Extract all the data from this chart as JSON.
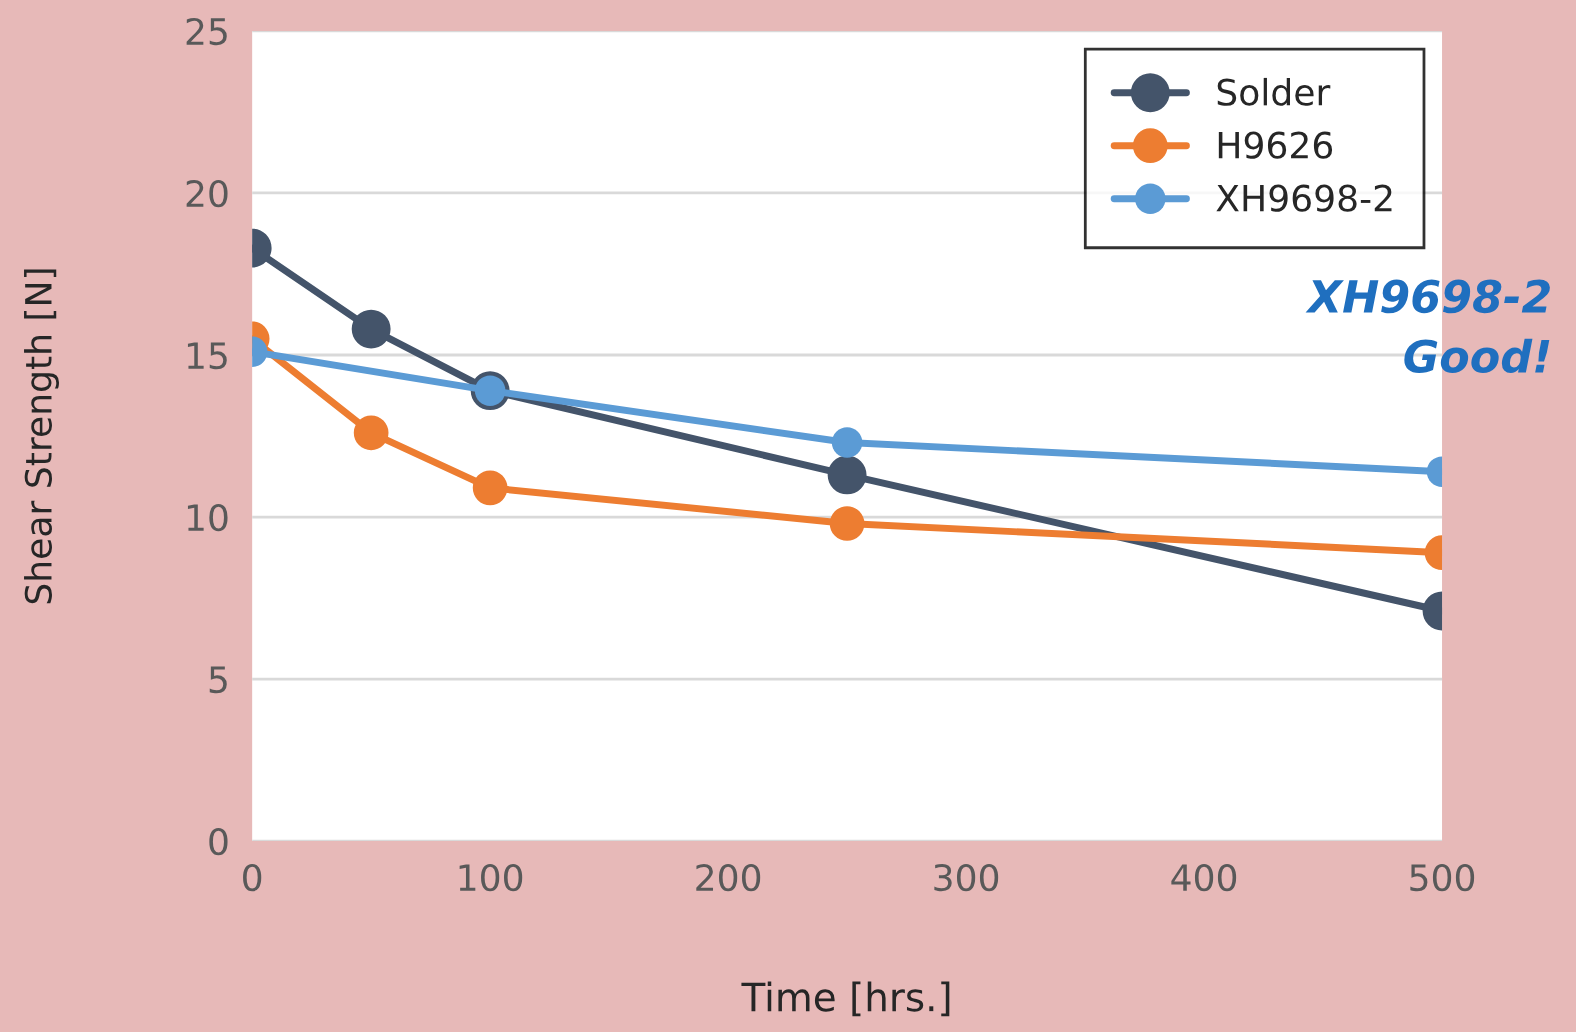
{
  "chart_data": {
    "type": "line",
    "xlabel": "Time [hrs.]",
    "ylabel": "Shear Strength [N]",
    "xlim": [
      0,
      500
    ],
    "xticks": [
      0,
      100,
      200,
      300,
      400,
      500
    ],
    "ylim": [
      0,
      25
    ],
    "yticks": [
      0,
      5,
      10,
      15,
      20,
      25
    ],
    "grid": "y",
    "legend": "top right",
    "marker": "circle",
    "line_style": "solid",
    "series": [
      {
        "name": "Solder",
        "color": "#44546a",
        "x": [
          0,
          50,
          100,
          250,
          500
        ],
        "values": [
          18.3,
          15.8,
          13.9,
          11.3,
          7.1
        ]
      },
      {
        "name": "H9626",
        "color": "#ed7d31",
        "x": [
          0,
          50,
          100,
          250,
          500
        ],
        "values": [
          15.5,
          12.6,
          10.9,
          9.8,
          8.9
        ]
      },
      {
        "name": "XH9698-2",
        "color": "#5b9bd5",
        "x": [
          0,
          100,
          250,
          500
        ],
        "values": [
          15.1,
          13.9,
          12.3,
          11.4
        ]
      }
    ],
    "annotations": [
      "XH9698-2\nGood!"
    ]
  }
}
